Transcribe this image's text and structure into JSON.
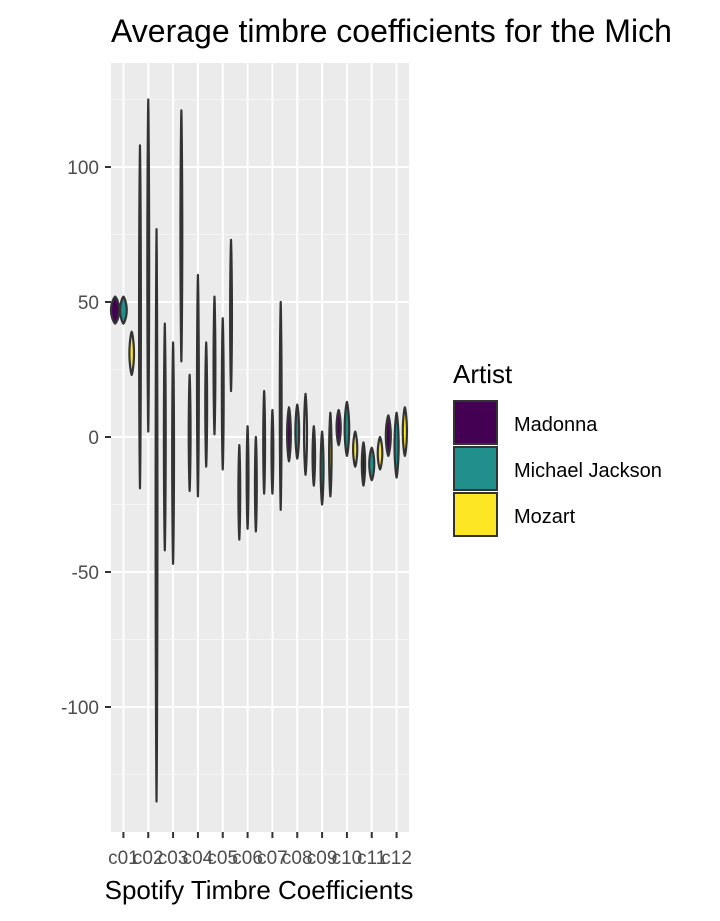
{
  "chart_data": {
    "type": "violin",
    "title": "Average timbre coefficients for the Mich",
    "xlabel": "Spotify Timbre Coefficients",
    "ylabel": "",
    "ylim": [
      -145,
      128
    ],
    "y_ticks": [
      -100,
      -50,
      0,
      50,
      100
    ],
    "grid": true,
    "legend": {
      "title": "Artist",
      "placement": "right"
    },
    "categories": [
      "c01",
      "c02",
      "c03",
      "c04",
      "c05",
      "c06",
      "c07",
      "c08",
      "c09",
      "c10",
      "c11",
      "c12"
    ],
    "x_tick_labels": [
      "c01",
      "c02",
      "c03",
      "c04",
      "c05",
      "c06",
      "c07",
      "c08",
      "c09",
      "c10",
      "c11",
      "c12"
    ],
    "series": [
      {
        "name": "Madonna",
        "color": "#440154",
        "violins": [
          {
            "category": "c01",
            "min": 42,
            "max": 52,
            "width": 1.0
          },
          {
            "category": "c02",
            "min": -19,
            "max": 108,
            "width": 0.06
          },
          {
            "category": "c03",
            "min": -42,
            "max": 42,
            "width": 0.06
          },
          {
            "category": "c04",
            "min": -20,
            "max": 23,
            "width": 0.06
          },
          {
            "category": "c05",
            "min": 1,
            "max": 52,
            "width": 0.06
          },
          {
            "category": "c06",
            "min": -38,
            "max": -3,
            "width": 0.06
          },
          {
            "category": "c07",
            "min": -21,
            "max": 17,
            "width": 0.06
          },
          {
            "category": "c08",
            "min": -9,
            "max": 11,
            "width": 0.45
          },
          {
            "category": "c09",
            "min": -18,
            "max": 4,
            "width": 0.3
          },
          {
            "category": "c10",
            "min": -3,
            "max": 10,
            "width": 0.5
          },
          {
            "category": "c11",
            "min": -18,
            "max": -2,
            "width": 0.4
          },
          {
            "category": "c12",
            "min": -7,
            "max": 8,
            "width": 0.6
          }
        ]
      },
      {
        "name": "Michael Jackson",
        "color": "#21908C",
        "violins": [
          {
            "category": "c01",
            "min": 42,
            "max": 52,
            "width": 0.8
          },
          {
            "category": "c02",
            "min": 2,
            "max": 125,
            "width": 0.06
          },
          {
            "category": "c03",
            "min": -47,
            "max": 35,
            "width": 0.06
          },
          {
            "category": "c04",
            "min": -22,
            "max": 60,
            "width": 0.06
          },
          {
            "category": "c05",
            "min": -12,
            "max": 44,
            "width": 0.06
          },
          {
            "category": "c06",
            "min": -34,
            "max": 4,
            "width": 0.06
          },
          {
            "category": "c07",
            "min": -21,
            "max": 10,
            "width": 0.06
          },
          {
            "category": "c08",
            "min": -8,
            "max": 12,
            "width": 0.45
          },
          {
            "category": "c09",
            "min": -25,
            "max": 2,
            "width": 0.35
          },
          {
            "category": "c10",
            "min": -7,
            "max": 13,
            "width": 0.55
          },
          {
            "category": "c11",
            "min": -16,
            "max": -4,
            "width": 0.6
          },
          {
            "category": "c12",
            "min": -15,
            "max": 9,
            "width": 0.5
          }
        ]
      },
      {
        "name": "Mozart",
        "color": "#FDE725",
        "violins": [
          {
            "category": "c01",
            "min": 23,
            "max": 39,
            "width": 0.55
          },
          {
            "category": "c02",
            "min": -135,
            "max": 77,
            "width": 0.06
          },
          {
            "category": "c03",
            "min": 28,
            "max": 121,
            "width": 0.06
          },
          {
            "category": "c04",
            "min": -11,
            "max": 35,
            "width": 0.06
          },
          {
            "category": "c05",
            "min": 17,
            "max": 73,
            "width": 0.06
          },
          {
            "category": "c06",
            "min": -35,
            "max": 0,
            "width": 0.06
          },
          {
            "category": "c07",
            "min": -27,
            "max": 50,
            "width": 0.06
          },
          {
            "category": "c08",
            "min": -14,
            "max": 16,
            "width": 0.35
          },
          {
            "category": "c09",
            "min": -22,
            "max": 9,
            "width": 0.3
          },
          {
            "category": "c10",
            "min": -11,
            "max": 2,
            "width": 0.5
          },
          {
            "category": "c11",
            "min": -12,
            "max": 0,
            "width": 0.55
          },
          {
            "category": "c12",
            "min": -7,
            "max": 11,
            "width": 0.5
          }
        ]
      }
    ]
  }
}
